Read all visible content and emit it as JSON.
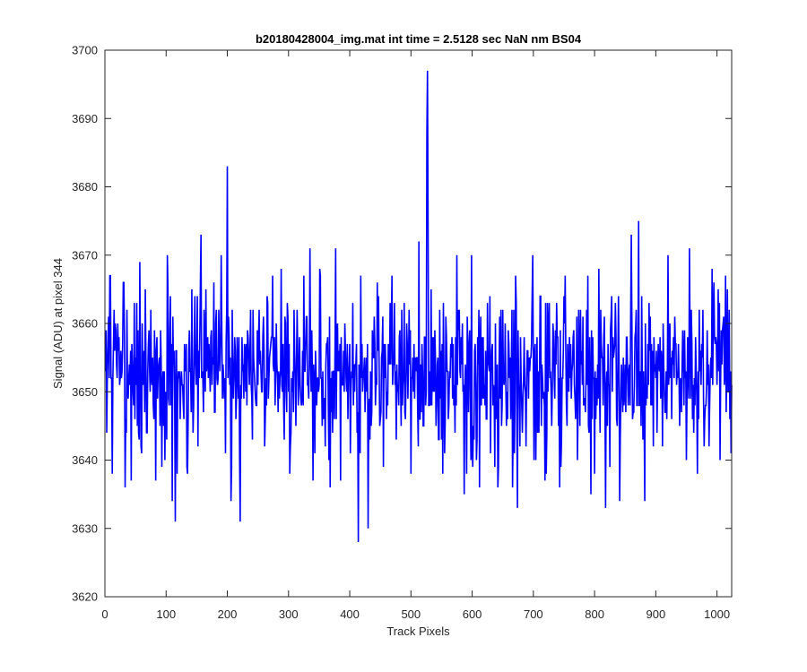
{
  "chart_data": {
    "type": "line",
    "title": "b20180428004_img.mat int time = 2.5128 sec  NaN nm BS04",
    "xlabel": "Track Pixels",
    "ylabel": "Signal (ADU) at pixel 344",
    "xlim": [
      0,
      1024
    ],
    "ylim": [
      3620,
      3700
    ],
    "xticks": [
      0,
      100,
      200,
      300,
      400,
      500,
      600,
      700,
      800,
      900,
      1000
    ],
    "yticks": [
      3620,
      3630,
      3640,
      3650,
      3660,
      3670,
      3680,
      3690,
      3700
    ],
    "grid": false,
    "series": [
      {
        "color": "#0000ff",
        "n_points": 1024,
        "baseline": 3652.5,
        "noise_sd": 5.8,
        "x": [
          3,
          8,
          12,
          30,
          33,
          43,
          52,
          55,
          57,
          83,
          102,
          110,
          115,
          118,
          135,
          142,
          157,
          165,
          190,
          197,
          200,
          206,
          221,
          288,
          302,
          335,
          340,
          351,
          368,
          377,
          401,
          414,
          418,
          430,
          450,
          469,
          500,
          513,
          526,
          527,
          528,
          555,
          575,
          587,
          599,
          612,
          642,
          668,
          674,
          699,
          719,
          726,
          743,
          750,
          772,
          789,
          800,
          807,
          818,
          828,
          841,
          860,
          872,
          882,
          920,
          950,
          955,
          968,
          992,
          1017
        ],
        "y": [
          3644,
          3667,
          3638,
          3666,
          3636,
          3637,
          3663,
          3644,
          3669,
          3637,
          3670,
          3634,
          3631,
          3638,
          3638,
          3665,
          3673,
          3665,
          3670,
          3641,
          3683,
          3634,
          3631,
          3668,
          3638,
          3671,
          3637,
          3668,
          3636,
          3671,
          3641,
          3628,
          3667,
          3630,
          3646,
          3667,
          3638,
          3672,
          3688,
          3697,
          3675,
          3641,
          3670,
          3635,
          3670,
          3636,
          3636,
          3662,
          3633,
          3670,
          3637,
          3663,
          3636,
          3664,
          3640,
          3667,
          3638,
          3668,
          3633,
          3664,
          3634,
          3673,
          3675,
          3634,
          3670,
          3640,
          3671,
          3638,
          3668,
          3665
        ]
      }
    ]
  }
}
